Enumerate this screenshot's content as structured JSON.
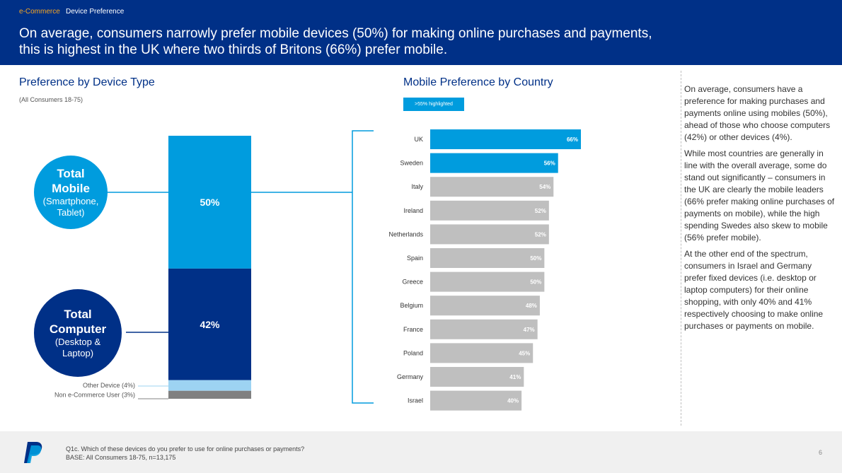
{
  "header": {
    "crumb_section": "e-Commerce",
    "crumb_page": "Device Preference",
    "headline_line1": "On average, consumers narrowly prefer mobile devices (50%) for making online purchases and payments,",
    "headline_line2": "this is highest in the UK where two thirds of Britons (66%) prefer mobile."
  },
  "left": {
    "title": "Preference by Device Type",
    "subtitle": "(All Consumers 18-75)",
    "mobile_circle": {
      "title_1": "Total",
      "title_2": "Mobile",
      "detail_1": "(Smartphone,",
      "detail_2": "Tablet)"
    },
    "computer_circle": {
      "title_1": "Total",
      "title_2": "Computer",
      "detail_1": "(Desktop &",
      "detail_2": "Laptop)"
    }
  },
  "right": {
    "title": "Mobile Preference by Country",
    "highlight_note": ">55% highlighted"
  },
  "sidebar": {
    "p1": "On average, consumers have a preference for making purchases and payments online using mobiles (50%), ahead of those who choose computers (42%) or other devices (4%).",
    "p2": "While most countries are generally in line with the overall average, some do stand out significantly – consumers in the UK are clearly the mobile leaders (66% prefer making online purchases of payments on mobile), while the high spending Swedes also skew to mobile (56% prefer mobile).",
    "p3": "At the other end of the spectrum, consumers in Israel and Germany prefer fixed devices (i.e. desktop or laptop computers) for their online shopping, with only 40% and 41% respectively choosing to make online purchases or payments on mobile."
  },
  "footer": {
    "question": "Q1c. Which of these devices do you prefer to use for online purchases or payments?",
    "base": "BASE: All Consumers 18-75, n=13,175",
    "page": "6"
  },
  "colors": {
    "navy": "#003087",
    "mobile_blue": "#009cde",
    "other_light": "#9dd3f2",
    "non_user_grey": "#808080",
    "bar_grey": "#bfbfbf",
    "accent_orange": "#f5a623"
  },
  "chart_data": [
    {
      "type": "bar",
      "orientation": "vertical-stacked",
      "title": "Preference by Device Type",
      "categories": [
        "All Consumers 18-75"
      ],
      "series": [
        {
          "name": "Total Mobile",
          "value": 50,
          "label": "50%"
        },
        {
          "name": "Total Computer",
          "value": 42,
          "label": "42%"
        },
        {
          "name": "Other Device (4%)",
          "value": 4,
          "label": "Other Device (4%)"
        },
        {
          "name": "Non e-Commerce User (3%)",
          "value": 3,
          "label": "Non e-Commerce User (3%)"
        }
      ]
    },
    {
      "type": "bar",
      "orientation": "horizontal",
      "title": "Mobile Preference by Country",
      "highlight_threshold": 55,
      "categories": [
        "UK",
        "Sweden",
        "Italy",
        "Ireland",
        "Netherlands",
        "Spain",
        "Greece",
        "Belgium",
        "France",
        "Poland",
        "Germany",
        "Israel"
      ],
      "values": [
        66,
        56,
        54,
        52,
        52,
        50,
        50,
        48,
        47,
        45,
        41,
        40
      ],
      "labels": [
        "66%",
        "56%",
        "54%",
        "52%",
        "52%",
        "50%",
        "50%",
        "48%",
        "47%",
        "45%",
        "41%",
        "40%"
      ]
    }
  ]
}
